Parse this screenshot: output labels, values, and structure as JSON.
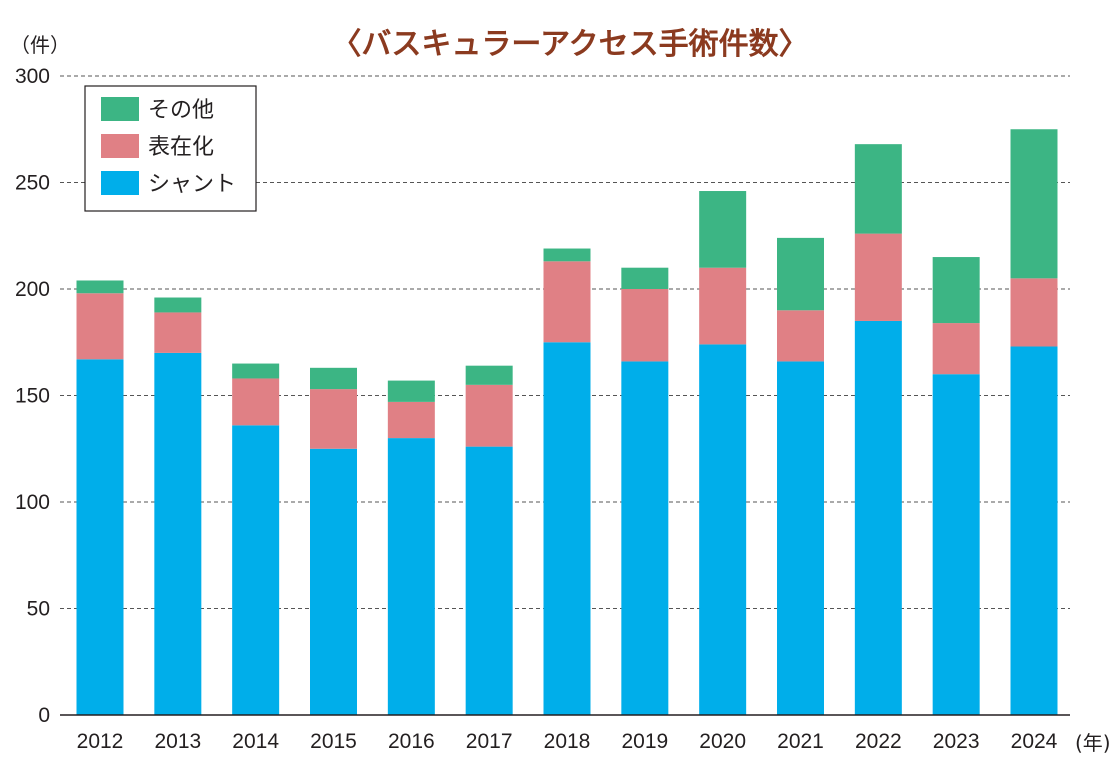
{
  "chart_data": {
    "type": "bar",
    "stacked": true,
    "title": "〈バスキュラーアクセス手術件数〉",
    "y_unit_label": "（件）",
    "x_unit_label": "(年)",
    "categories": [
      "2012",
      "2013",
      "2014",
      "2015",
      "2016",
      "2017",
      "2018",
      "2019",
      "2020",
      "2021",
      "2022",
      "2023",
      "2024"
    ],
    "series": [
      {
        "name": "シャント",
        "color": "#00aeea",
        "values": [
          167,
          170,
          136,
          125,
          130,
          126,
          175,
          166,
          174,
          166,
          185,
          160,
          173
        ]
      },
      {
        "name": "表在化",
        "color": "#e08085",
        "values": [
          31,
          19,
          22,
          28,
          17,
          29,
          38,
          34,
          36,
          24,
          41,
          24,
          32
        ]
      },
      {
        "name": "その他",
        "color": "#3cb584",
        "values": [
          6,
          7,
          7,
          10,
          10,
          9,
          6,
          10,
          36,
          34,
          42,
          31,
          70
        ]
      }
    ],
    "legend_order": [
      "その他",
      "表在化",
      "シャント"
    ],
    "yticks": [
      0,
      50,
      100,
      150,
      200,
      250,
      300
    ],
    "ylim": [
      0,
      300
    ],
    "grid": "dashed horizontal",
    "legend_position": "top-left"
  }
}
